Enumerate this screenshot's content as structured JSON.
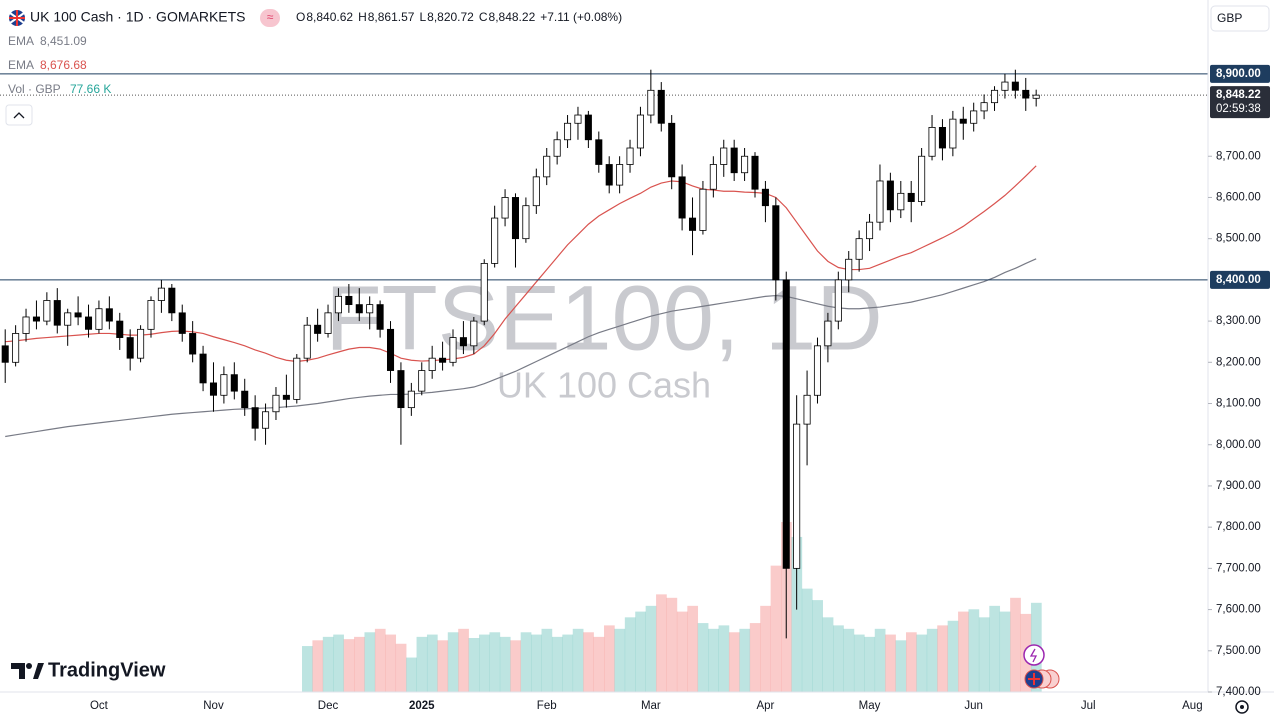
{
  "chart_data": {
    "type": "candlestick",
    "title": "UK 100 Cash · 1D · GOMARKETS",
    "watermark": "FTSE100, 1D",
    "watermark_subtitle": "UK 100 Cash",
    "currency": "GBP",
    "logo": "TradingView",
    "ohlc_legend": [
      {
        "key": "O",
        "value": "8,840.62"
      },
      {
        "key": "H",
        "value": "8,861.57"
      },
      {
        "key": "L",
        "value": "8,820.72"
      },
      {
        "key": "C",
        "value": "8,848.22"
      }
    ],
    "change": "+7.11 (+0.08%)",
    "categories": [
      null,
      null,
      null,
      null,
      null,
      null,
      null,
      null,
      null,
      "Oct",
      null,
      null,
      null,
      null,
      null,
      null,
      null,
      null,
      null,
      null,
      "Nov",
      null,
      null,
      null,
      null,
      null,
      null,
      null,
      null,
      null,
      null,
      "Dec",
      null,
      null,
      null,
      null,
      null,
      null,
      null,
      null,
      "2025",
      null,
      null,
      null,
      null,
      null,
      null,
      null,
      null,
      null,
      null,
      null,
      "Feb",
      null,
      null,
      null,
      null,
      null,
      null,
      null,
      null,
      null,
      "Mar",
      null,
      null,
      null,
      null,
      null,
      null,
      null,
      null,
      null,
      null,
      "Apr",
      null,
      null,
      null,
      null,
      null,
      null,
      null,
      null,
      null,
      "May",
      null,
      null,
      null,
      null,
      null,
      null,
      null,
      null,
      null,
      "Jun",
      null,
      null,
      null,
      null,
      null,
      null,
      null,
      null,
      null,
      null,
      "Jul",
      null,
      null,
      null,
      null,
      null,
      null,
      null,
      null,
      null,
      "Aug",
      null
    ],
    "ohlc": [
      [
        8240,
        8280,
        8150,
        8200
      ],
      [
        8200,
        8290,
        8190,
        8270
      ],
      [
        8270,
        8330,
        8250,
        8310
      ],
      [
        8310,
        8350,
        8280,
        8300
      ],
      [
        8300,
        8370,
        8290,
        8350
      ],
      [
        8350,
        8380,
        8270,
        8290
      ],
      [
        8290,
        8330,
        8240,
        8320
      ],
      [
        8320,
        8360,
        8290,
        8310
      ],
      [
        8310,
        8340,
        8260,
        8280
      ],
      [
        8280,
        8350,
        8270,
        8330
      ],
      [
        8330,
        8360,
        8280,
        8300
      ],
      [
        8300,
        8320,
        8230,
        8260
      ],
      [
        8260,
        8280,
        8180,
        8210
      ],
      [
        8210,
        8290,
        8200,
        8280
      ],
      [
        8280,
        8360,
        8260,
        8350
      ],
      [
        8350,
        8400,
        8320,
        8380
      ],
      [
        8380,
        8390,
        8300,
        8320
      ],
      [
        8320,
        8340,
        8250,
        8270
      ],
      [
        8270,
        8300,
        8200,
        8220
      ],
      [
        8220,
        8240,
        8130,
        8150
      ],
      [
        8150,
        8200,
        8080,
        8120
      ],
      [
        8120,
        8190,
        8100,
        8170
      ],
      [
        8170,
        8200,
        8110,
        8130
      ],
      [
        8130,
        8160,
        8070,
        8090
      ],
      [
        8090,
        8120,
        8010,
        8040
      ],
      [
        8040,
        8100,
        8000,
        8080
      ],
      [
        8080,
        8140,
        8060,
        8120
      ],
      [
        8120,
        8170,
        8090,
        8110
      ],
      [
        8110,
        8220,
        8100,
        8210
      ],
      [
        8210,
        8310,
        8200,
        8290
      ],
      [
        8290,
        8330,
        8250,
        8270
      ],
      [
        8270,
        8340,
        8260,
        8320
      ],
      [
        8320,
        8380,
        8300,
        8360
      ],
      [
        8360,
        8390,
        8320,
        8340
      ],
      [
        8340,
        8380,
        8300,
        8320
      ],
      [
        8320,
        8360,
        8280,
        8340
      ],
      [
        8340,
        8350,
        8260,
        8280
      ],
      [
        8280,
        8300,
        8150,
        8180
      ],
      [
        8180,
        8200,
        8000,
        8090
      ],
      [
        8090,
        8150,
        8070,
        8130
      ],
      [
        8130,
        8200,
        8120,
        8180
      ],
      [
        8180,
        8240,
        8160,
        8210
      ],
      [
        8210,
        8250,
        8180,
        8200
      ],
      [
        8200,
        8280,
        8190,
        8260
      ],
      [
        8260,
        8300,
        8220,
        8240
      ],
      [
        8240,
        8310,
        8220,
        8300
      ],
      [
        8300,
        8450,
        8290,
        8440
      ],
      [
        8440,
        8580,
        8430,
        8550
      ],
      [
        8550,
        8620,
        8530,
        8600
      ],
      [
        8600,
        8610,
        8430,
        8500
      ],
      [
        8500,
        8600,
        8490,
        8580
      ],
      [
        8580,
        8670,
        8560,
        8650
      ],
      [
        8650,
        8720,
        8630,
        8700
      ],
      [
        8700,
        8760,
        8680,
        8740
      ],
      [
        8740,
        8800,
        8720,
        8780
      ],
      [
        8780,
        8820,
        8740,
        8800
      ],
      [
        8800,
        8810,
        8720,
        8740
      ],
      [
        8740,
        8760,
        8660,
        8680
      ],
      [
        8680,
        8700,
        8610,
        8630
      ],
      [
        8630,
        8700,
        8610,
        8680
      ],
      [
        8680,
        8740,
        8660,
        8720
      ],
      [
        8720,
        8820,
        8700,
        8800
      ],
      [
        8800,
        8910,
        8780,
        8860
      ],
      [
        8860,
        8880,
        8760,
        8780
      ],
      [
        8780,
        8800,
        8620,
        8650
      ],
      [
        8650,
        8680,
        8520,
        8550
      ],
      [
        8550,
        8600,
        8460,
        8520
      ],
      [
        8520,
        8640,
        8510,
        8620
      ],
      [
        8620,
        8700,
        8600,
        8680
      ],
      [
        8680,
        8740,
        8650,
        8720
      ],
      [
        8720,
        8740,
        8640,
        8660
      ],
      [
        8660,
        8720,
        8640,
        8700
      ],
      [
        8700,
        8710,
        8600,
        8620
      ],
      [
        8620,
        8640,
        8540,
        8580
      ],
      [
        8580,
        8600,
        8350,
        8400
      ],
      [
        8400,
        8420,
        7530,
        7700
      ],
      [
        7700,
        8120,
        7600,
        8050
      ],
      [
        8050,
        8180,
        7950,
        8120
      ],
      [
        8120,
        8260,
        8100,
        8240
      ],
      [
        8240,
        8320,
        8200,
        8300
      ],
      [
        8300,
        8420,
        8280,
        8400
      ],
      [
        8400,
        8470,
        8370,
        8450
      ],
      [
        8450,
        8520,
        8420,
        8500
      ],
      [
        8500,
        8560,
        8470,
        8540
      ],
      [
        8540,
        8680,
        8520,
        8640
      ],
      [
        8640,
        8660,
        8540,
        8570
      ],
      [
        8570,
        8640,
        8550,
        8610
      ],
      [
        8610,
        8640,
        8540,
        8590
      ],
      [
        8590,
        8720,
        8580,
        8700
      ],
      [
        8700,
        8800,
        8690,
        8770
      ],
      [
        8770,
        8790,
        8690,
        8720
      ],
      [
        8720,
        8810,
        8700,
        8790
      ],
      [
        8790,
        8820,
        8740,
        8780
      ],
      [
        8780,
        8830,
        8760,
        8810
      ],
      [
        8810,
        8850,
        8790,
        8830
      ],
      [
        8830,
        8870,
        8810,
        8860
      ],
      [
        8860,
        8900,
        8840,
        8880
      ],
      [
        8880,
        8910,
        8840,
        8860
      ],
      [
        8860,
        8890,
        8810,
        8841.11
      ],
      [
        8840.62,
        8861.57,
        8820.72,
        8848.22
      ],
      null,
      null,
      null,
      null,
      null,
      null,
      null,
      null,
      null,
      null,
      null,
      null,
      null,
      null,
      null,
      null
    ],
    "candle_colors": {
      "up": "#ffffff",
      "down": "#000000",
      "border": "#000000"
    },
    "series": [
      {
        "name": "EMA",
        "color": "#787b86",
        "value_label": "8,451.09",
        "values": [
          8020,
          8024,
          8028,
          8032,
          8036,
          8040,
          8044,
          8047,
          8050,
          8053,
          8056,
          8059,
          8062,
          8065,
          8068,
          8071,
          8074,
          8076,
          8078,
          8080,
          8082,
          8084,
          8086,
          8087,
          8088,
          8089,
          8090,
          8092,
          8094,
          8097,
          8100,
          8104,
          8108,
          8112,
          8115,
          8118,
          8120,
          8122,
          8122,
          8123,
          8125,
          8127,
          8130,
          8133,
          8136,
          8140,
          8148,
          8158,
          8168,
          8178,
          8190,
          8202,
          8214,
          8226,
          8238,
          8250,
          8262,
          8272,
          8280,
          8288,
          8296,
          8304,
          8312,
          8318,
          8324,
          8328,
          8332,
          8336,
          8340,
          8344,
          8348,
          8352,
          8356,
          8360,
          8362,
          8360,
          8354,
          8348,
          8342,
          8336,
          8332,
          8330,
          8330,
          8332,
          8334,
          8338,
          8342,
          8346,
          8352,
          8358,
          8364,
          8372,
          8380,
          8388,
          8396,
          8406,
          8418,
          8428,
          8440,
          8451.09,
          null,
          null,
          null,
          null,
          null,
          null,
          null,
          null,
          null,
          null,
          null,
          null,
          null,
          null,
          null,
          null
        ]
      },
      {
        "name": "EMA",
        "color": "#d9534f",
        "value_label": "8,676.68",
        "values": [
          8250,
          8252,
          8255,
          8258,
          8260,
          8262,
          8264,
          8266,
          8268,
          8270,
          8270,
          8268,
          8266,
          8266,
          8268,
          8272,
          8275,
          8276,
          8274,
          8270,
          8262,
          8255,
          8248,
          8240,
          8230,
          8222,
          8212,
          8205,
          8202,
          8205,
          8210,
          8218,
          8225,
          8232,
          8236,
          8236,
          8232,
          8222,
          8210,
          8205,
          8203,
          8204,
          8206,
          8208,
          8212,
          8220,
          8240,
          8270,
          8305,
          8335,
          8365,
          8395,
          8425,
          8455,
          8485,
          8510,
          8535,
          8555,
          8570,
          8585,
          8598,
          8610,
          8625,
          8635,
          8640,
          8638,
          8628,
          8620,
          8618,
          8615,
          8615,
          8613,
          8612,
          8610,
          8600,
          8575,
          8540,
          8505,
          8470,
          8445,
          8430,
          8425,
          8425,
          8428,
          8438,
          8448,
          8458,
          8466,
          8478,
          8490,
          8502,
          8515,
          8530,
          8548,
          8566,
          8585,
          8605,
          8628,
          8652,
          8676.68,
          null,
          null,
          null,
          null,
          null,
          null,
          null,
          null,
          null,
          null,
          null,
          null,
          null,
          null,
          null,
          null
        ]
      }
    ],
    "volume": {
      "name": "Vol · GBP",
      "value_label": "77.66 K",
      "color": "#26a69a",
      "up_color": "rgba(38,166,154,0.3)",
      "down_color": "rgba(239,83,80,0.3)",
      "values": [
        null,
        null,
        null,
        null,
        null,
        null,
        null,
        null,
        null,
        null,
        null,
        null,
        null,
        null,
        null,
        null,
        null,
        null,
        null,
        null,
        null,
        null,
        null,
        null,
        null,
        null,
        null,
        null,
        null,
        40,
        45,
        48,
        50,
        46,
        48,
        52,
        55,
        50,
        42,
        30,
        48,
        50,
        45,
        52,
        55,
        47,
        50,
        52,
        48,
        45,
        52,
        50,
        55,
        48,
        50,
        55,
        52,
        48,
        58,
        55,
        65,
        70,
        75,
        85,
        82,
        70,
        75,
        60,
        55,
        58,
        52,
        55,
        60,
        75,
        110,
        148,
        135,
        90,
        80,
        65,
        58,
        55,
        50,
        48,
        55,
        50,
        45,
        52,
        50,
        55,
        58,
        62,
        70,
        72,
        65,
        75,
        70,
        82,
        68,
        77.66,
        null,
        null,
        null,
        null,
        null,
        null,
        null,
        null,
        null,
        null,
        null,
        null,
        null,
        null,
        null,
        null
      ]
    },
    "ylim": [
      7400,
      9067
    ],
    "yticks": [
      {
        "value": 7400,
        "label": "7,400.00"
      },
      {
        "value": 7500,
        "label": "7,500.00"
      },
      {
        "value": 7600,
        "label": "7,600.00"
      },
      {
        "value": 7700,
        "label": "7,700.00"
      },
      {
        "value": 7800,
        "label": "7,800.00"
      },
      {
        "value": 7900,
        "label": "7,900.00"
      },
      {
        "value": 8000,
        "label": "8,000.00"
      },
      {
        "value": 8100,
        "label": "8,100.00"
      },
      {
        "value": 8200,
        "label": "8,200.00"
      },
      {
        "value": 8300,
        "label": "8,300.00"
      },
      {
        "value": 8500,
        "label": "8,500.00"
      },
      {
        "value": 8600,
        "label": "8,600.00"
      },
      {
        "value": 8700,
        "label": "8,700.00"
      }
    ],
    "hlines": [
      {
        "value": 8900,
        "label": "8,900.00",
        "color": "#1e3d5f"
      },
      {
        "value": 8400,
        "label": "8,400.00",
        "color": "#1e3d5f"
      }
    ],
    "last_price": {
      "value": 8848.22,
      "label": "8,848.22",
      "countdown": "02:59:38"
    }
  }
}
